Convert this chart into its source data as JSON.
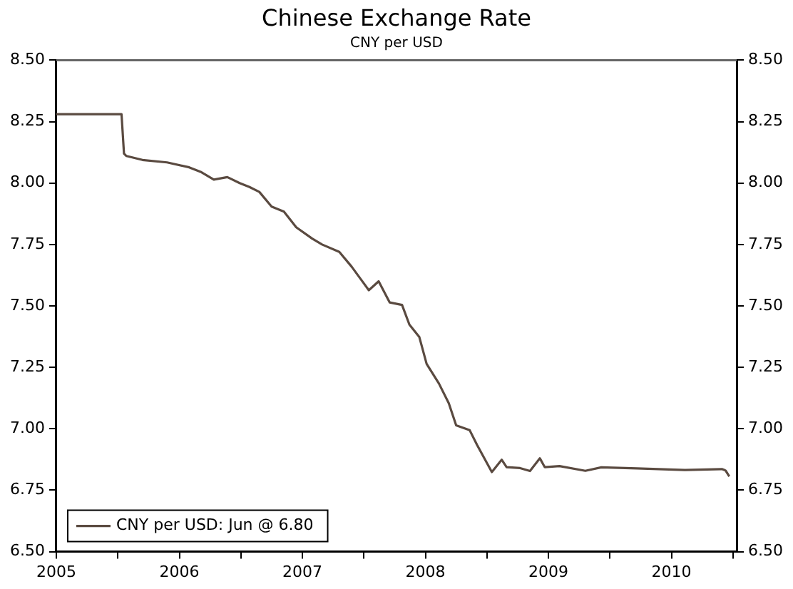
{
  "chart_data": {
    "type": "line",
    "title": "Chinese Exchange Rate",
    "subtitle": "CNY per USD",
    "xlim": [
      2005,
      2010.53
    ],
    "xticks": [
      2005,
      {
        "value": 2005.5,
        "label": null
      },
      2006,
      {
        "value": 2006.5,
        "label": null
      },
      2007,
      {
        "value": 2007.5,
        "label": null
      },
      2008,
      {
        "value": 2008.5,
        "label": null
      },
      2009,
      {
        "value": 2009.5,
        "label": null
      },
      2010,
      {
        "value": 2010.5,
        "label": null
      }
    ],
    "ylim": [
      6.5,
      8.5
    ],
    "yticks": [
      {
        "value": 6.5,
        "label": "6.50"
      },
      6.75,
      {
        "value": 7,
        "label": "7.00"
      },
      7.25,
      {
        "value": 7.5,
        "label": "7.50"
      },
      7.75,
      {
        "value": 8,
        "label": "8.00"
      },
      8.25,
      {
        "value": 8.5,
        "label": "8.50"
      }
    ],
    "y2lim": [
      6.5,
      8.5
    ],
    "y2ticks": [
      {
        "value": 6.5,
        "label": "6.50"
      },
      6.75,
      {
        "value": 7,
        "label": "7.00"
      },
      7.25,
      {
        "value": 7.5,
        "label": "7.50"
      },
      7.75,
      {
        "value": 8,
        "label": "8.00"
      },
      8.25,
      {
        "value": 8.5,
        "label": "8.50"
      }
    ],
    "series": [
      {
        "name": "CNY per USD: Jun @ 6.80",
        "color": "#5a4a40",
        "x": [
          2005.0,
          2005.3,
          2005.53,
          2005.55,
          2005.57,
          2005.7,
          2005.9,
          2006.08,
          2006.18,
          2006.28,
          2006.39,
          2006.49,
          2006.57,
          2006.65,
          2006.75,
          2006.85,
          2006.95,
          2007.08,
          2007.16,
          2007.3,
          2007.4,
          2007.54,
          2007.62,
          2007.71,
          2007.81,
          2007.87,
          2007.95,
          2008.01,
          2008.11,
          2008.19,
          2008.25,
          2008.36,
          2008.42,
          2008.54,
          2008.62,
          2008.66,
          2008.77,
          2008.85,
          2008.93,
          2008.97,
          2009.09,
          2009.3,
          2009.43,
          2009.72,
          2010.11,
          2010.41,
          2010.44,
          2010.47
        ],
        "values": [
          8.28,
          8.28,
          8.28,
          8.12,
          8.11,
          8.094,
          8.084,
          8.064,
          8.044,
          8.014,
          8.024,
          8.0,
          7.984,
          7.964,
          7.904,
          7.884,
          7.82,
          7.774,
          7.75,
          7.72,
          7.66,
          7.564,
          7.6,
          7.514,
          7.504,
          7.424,
          7.374,
          7.264,
          7.184,
          7.104,
          7.014,
          6.994,
          6.934,
          6.824,
          6.874,
          6.844,
          6.84,
          6.828,
          6.88,
          6.844,
          6.848,
          6.829,
          6.843,
          6.839,
          6.832,
          6.836,
          6.83,
          6.806
        ]
      }
    ],
    "grid": false,
    "legend": "bottom left",
    "marker": "none",
    "line_style": "solid"
  }
}
